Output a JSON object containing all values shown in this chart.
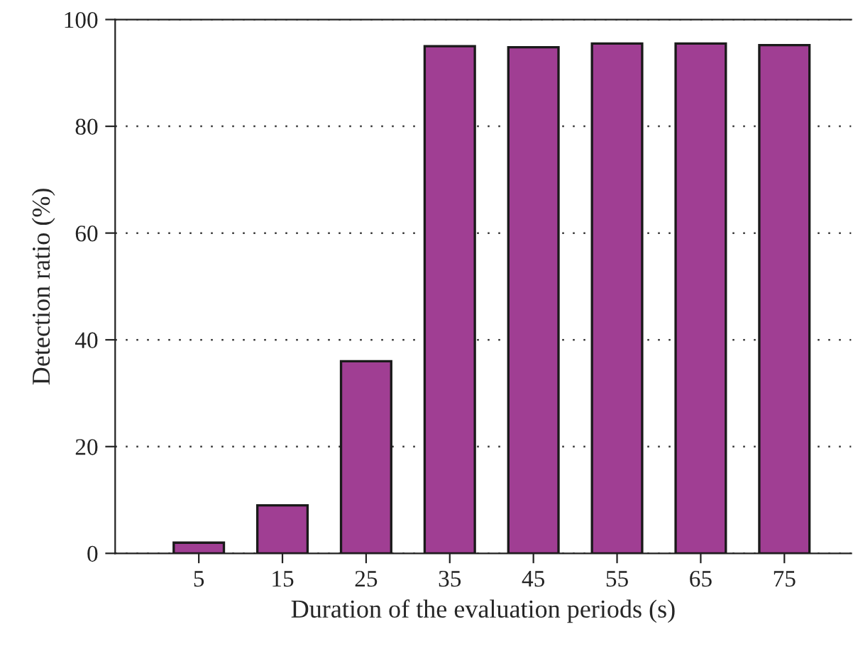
{
  "chart_data": {
    "type": "bar",
    "xlabel": "Duration of the evaluation periods (s)",
    "ylabel": "Detection ratio (%)",
    "x": [
      5,
      15,
      25,
      35,
      45,
      55,
      65,
      75
    ],
    "values": [
      2,
      9,
      36,
      95,
      94.8,
      95.5,
      95.5,
      95.2
    ],
    "color": "#a03e93",
    "xlim": [
      -5,
      83
    ],
    "xticks": [
      5,
      15,
      25,
      35,
      45,
      55,
      65,
      75
    ],
    "ylim": [
      0,
      100
    ],
    "yticks": [
      0,
      20,
      40,
      60,
      80,
      100
    ],
    "grid": "y"
  }
}
